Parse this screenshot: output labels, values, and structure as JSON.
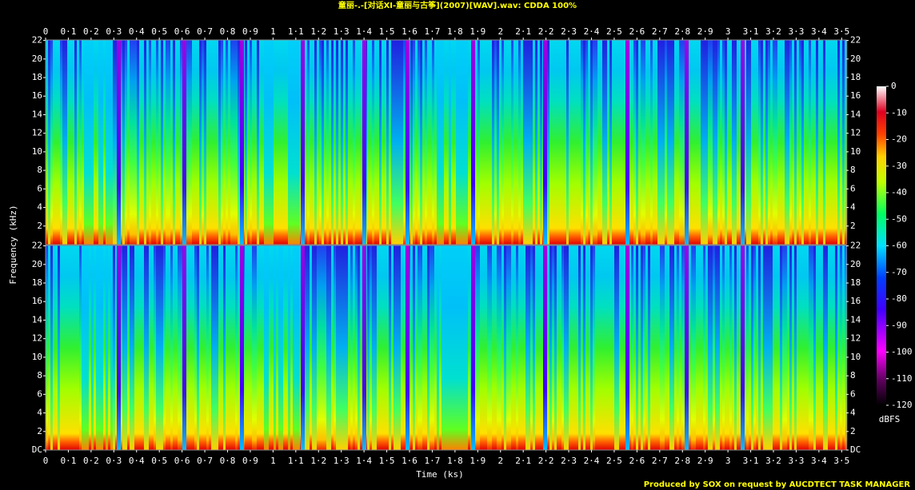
{
  "chart_data": {
    "type": "spectrogram",
    "title": "童丽-.-[对话XI-童丽与古筝](2007)[WAV].wav: CDDA 100%",
    "xlabel": "Time (ks)",
    "ylabel": "Frequency (kHz)",
    "colorbar_label": "dBFS",
    "footer": "Produced by SOX on request by AUCDTECT TASK MANAGER",
    "xlim": [
      0,
      3.52
    ],
    "xticks": [
      0,
      {
        "value": 0.1,
        "label": "0·1"
      },
      {
        "value": 0.2,
        "label": "0·2"
      },
      {
        "value": 0.3,
        "label": "0·3"
      },
      {
        "value": 0.4,
        "label": "0·4"
      },
      {
        "value": 0.5,
        "label": "0·5"
      },
      {
        "value": 0.6,
        "label": "0·6"
      },
      {
        "value": 0.7,
        "label": "0·7"
      },
      {
        "value": 0.8,
        "label": "0·8"
      },
      {
        "value": 0.9,
        "label": "0·9"
      },
      1,
      {
        "value": 1.1,
        "label": "1·1"
      },
      {
        "value": 1.2,
        "label": "1·2"
      },
      {
        "value": 1.3,
        "label": "1·3"
      },
      {
        "value": 1.4,
        "label": "1·4"
      },
      {
        "value": 1.5,
        "label": "1·5"
      },
      {
        "value": 1.6,
        "label": "1·6"
      },
      {
        "value": 1.7,
        "label": "1·7"
      },
      {
        "value": 1.8,
        "label": "1·8"
      },
      {
        "value": 1.9,
        "label": "1·9"
      },
      2,
      {
        "value": 2.1,
        "label": "2·1"
      },
      {
        "value": 2.2,
        "label": "2·2"
      },
      {
        "value": 2.3,
        "label": "2·3"
      },
      {
        "value": 2.4,
        "label": "2·4"
      },
      {
        "value": 2.5,
        "label": "2·5"
      },
      {
        "value": 2.6,
        "label": "2·6"
      },
      {
        "value": 2.7,
        "label": "2·7"
      },
      {
        "value": 2.8,
        "label": "2·8"
      },
      {
        "value": 2.9,
        "label": "2·9"
      },
      3,
      {
        "value": 3.1,
        "label": "3·1"
      },
      {
        "value": 3.2,
        "label": "3·2"
      },
      {
        "value": 3.3,
        "label": "3·3"
      },
      {
        "value": 3.4,
        "label": "3·4"
      },
      {
        "value": 3.5,
        "label": "3·5"
      }
    ],
    "ylim": [
      0,
      22.05
    ],
    "yticks": [
      {
        "value": 0,
        "label": "DC"
      },
      2,
      4,
      6,
      8,
      10,
      12,
      14,
      16,
      18,
      20,
      22
    ],
    "clim": [
      -120,
      0
    ],
    "cticks": [
      0,
      -10,
      -20,
      -30,
      -40,
      -50,
      -60,
      -70,
      -80,
      -90,
      -100,
      -110,
      -120
    ]
  }
}
